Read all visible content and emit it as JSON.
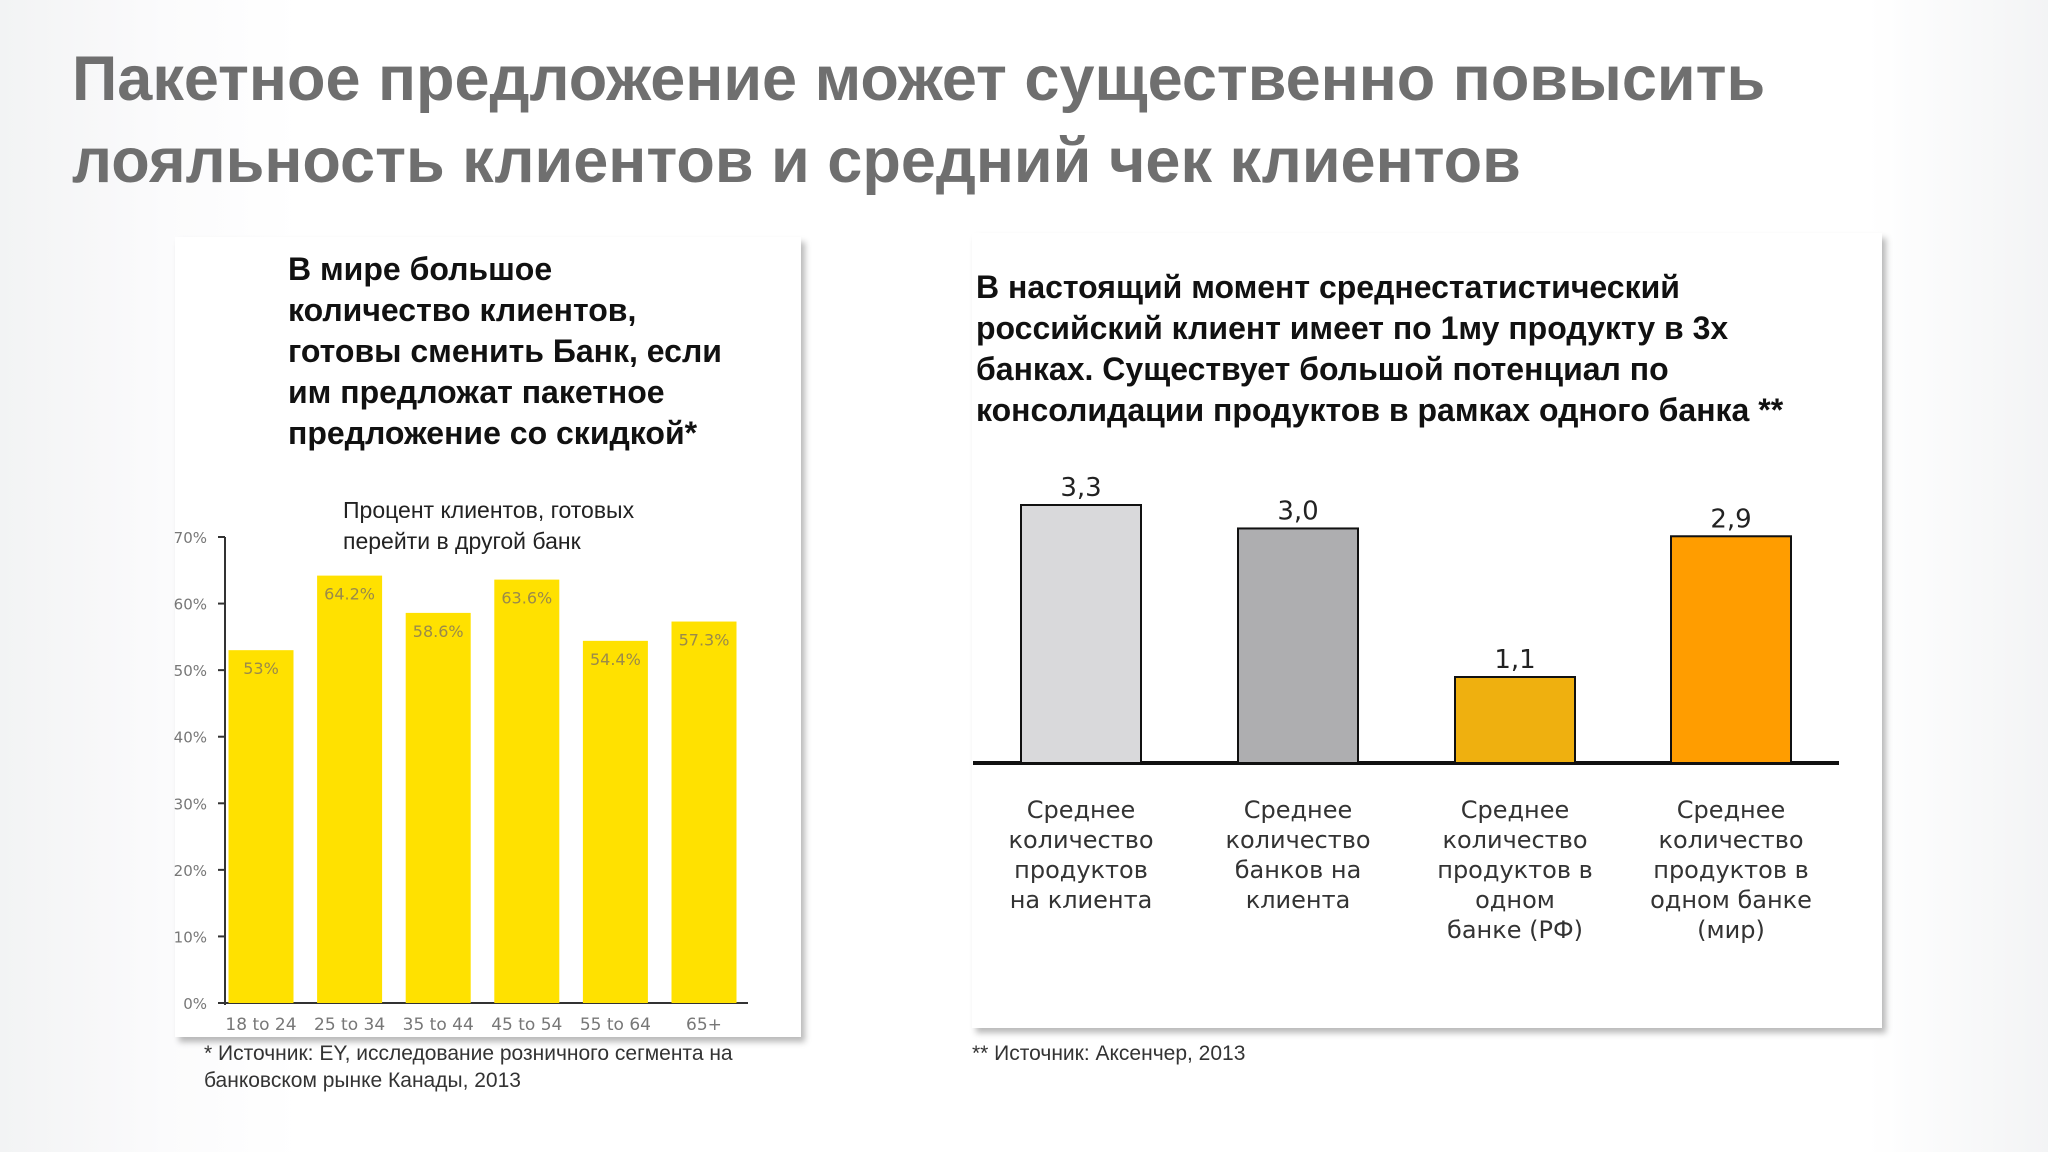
{
  "slide": {
    "title": "Пакетное предложение может существенно повысить\nлояльность клиентов и средний чек клиентов"
  },
  "left_panel": {
    "heading": "В мире большое\nколичество клиентов,\nготовы сменить Банк, если\nим предложат пакетное\nпредложение со скидкой*",
    "chart_caption": "Процент клиентов, готовых\nперейти в другой банк",
    "footnote": "* Источник: EY, исследование розничного сегмента на\nбанковском рынке Канады, 2013"
  },
  "right_panel": {
    "heading": "В настоящий момент среднестатистический\nроссийский клиент имеет по 1му продукту в 3х\nбанках. Существует большой потенциал по\nконсолидации продуктов в рамках одного банка **",
    "footnote": "** Источник: Аксенчер, 2013"
  },
  "chart_data": [
    {
      "type": "bar",
      "title": "Процент клиентов, готовых перейти в другой банк",
      "categories": [
        "18 to 24",
        "25 to 34",
        "35 to 44",
        "45 to 54",
        "55 to 64",
        "65+"
      ],
      "values": [
        53,
        64.2,
        58.6,
        63.6,
        54.4,
        57.3
      ],
      "value_labels": [
        "53%",
        "64.2%",
        "58.6%",
        "63.6%",
        "54.4%",
        "57.3%"
      ],
      "ylim": [
        0,
        70
      ],
      "yticks": [
        0,
        10,
        20,
        30,
        40,
        50,
        60,
        70
      ],
      "ytick_labels": [
        "0%",
        "10%",
        "20%",
        "30%",
        "40%",
        "50%",
        "60%",
        "70%"
      ],
      "bar_color": "#ffe100",
      "label_color": "#9a8a4a",
      "grid": false
    },
    {
      "type": "bar",
      "categories": [
        "Среднее\nколичество\nпродуктов\nна клиента",
        "Среднее\nколичество\nбанков на\nклиента",
        "Среднее\nколичество\nпродуктов в\nодном\nбанке (РФ)",
        "Среднее\nколичество\nпродуктов в\nодном банке\n(мир)"
      ],
      "values": [
        3.3,
        3.0,
        1.1,
        2.9
      ],
      "value_labels": [
        "3,3",
        "3,0",
        "1,1",
        "2,9"
      ],
      "colors": [
        "#d9d9db",
        "#aeaeb0",
        "#efb00f",
        "#ff9d00"
      ],
      "ylim": [
        0,
        3.3
      ],
      "axes_visible": false,
      "grid": false
    }
  ]
}
